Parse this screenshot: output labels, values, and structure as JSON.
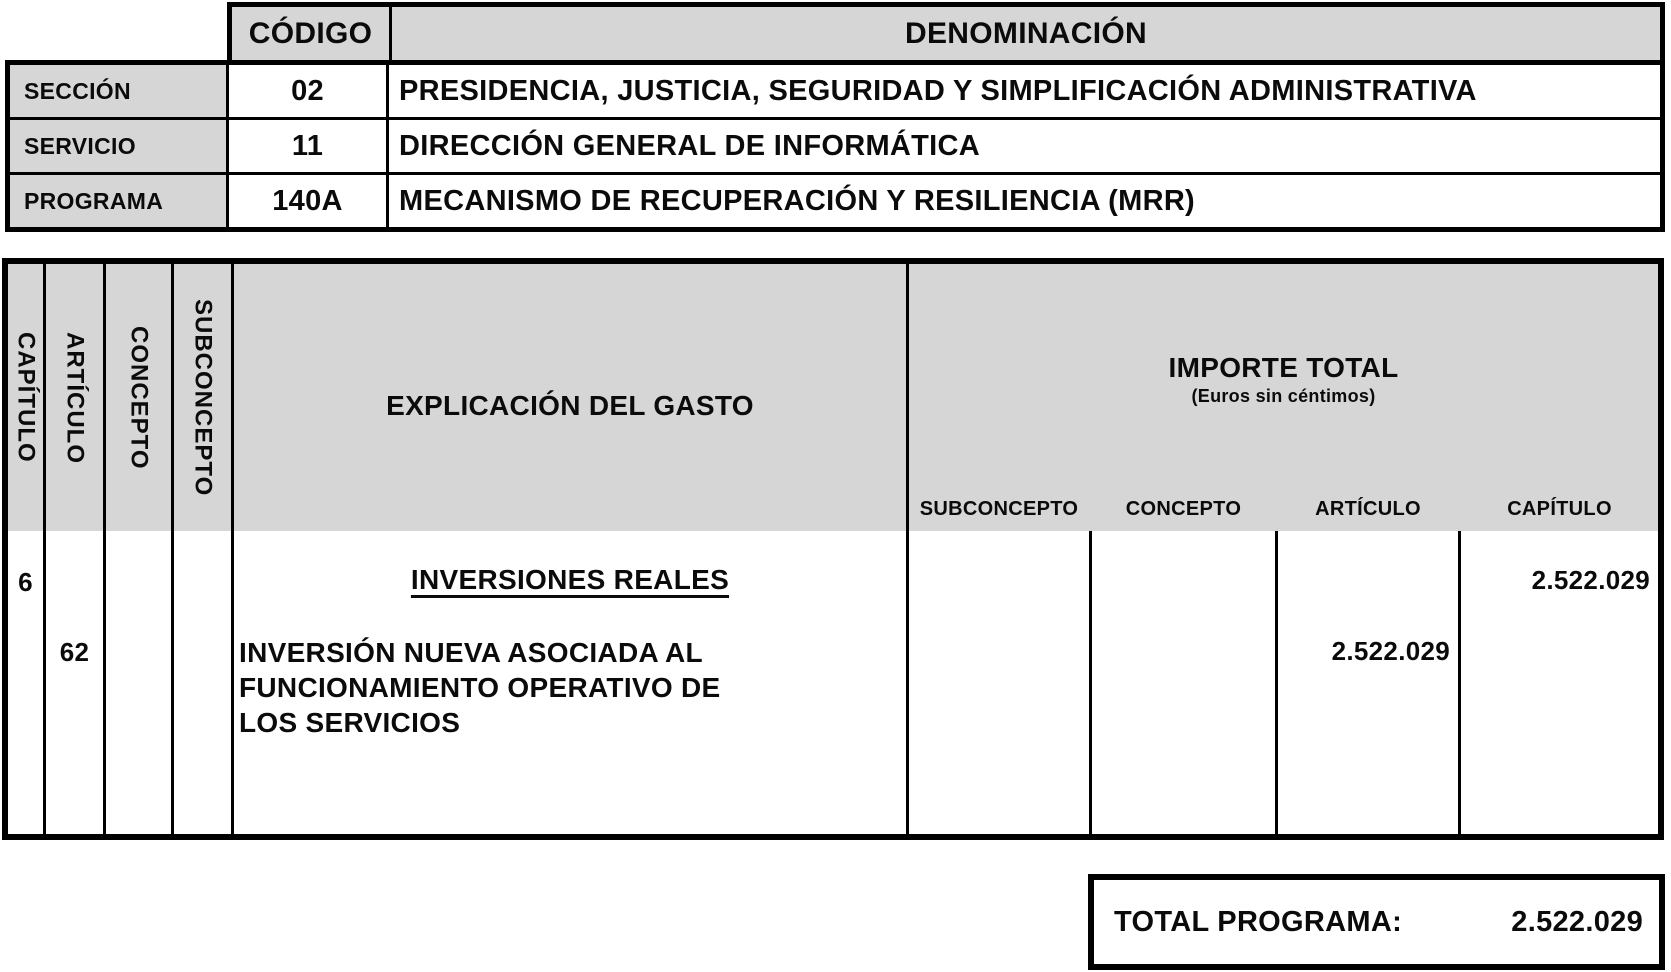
{
  "header_table": {
    "code_header": "CÓDIGO",
    "denomination_header": "DENOMINACIÓN",
    "rows": [
      {
        "label": "SECCIÓN",
        "code": "02",
        "denomination": "PRESIDENCIA, JUSTICIA, SEGURIDAD Y SIMPLIFICACIÓN ADMINISTRATIVA"
      },
      {
        "label": "SERVICIO",
        "code": "11",
        "denomination": "DIRECCIÓN GENERAL DE INFORMÁTICA"
      },
      {
        "label": "PROGRAMA",
        "code": "140A",
        "denomination": "MECANISMO DE RECUPERACIÓN Y RESILIENCIA (MRR)"
      }
    ]
  },
  "budget_table": {
    "row_headers_vertical": [
      "CAPÍTULO",
      "ARTÍCULO",
      "CONCEPTO",
      "SUBCONCEPTO"
    ],
    "explanation_header": "EXPLICACIÓN DEL GASTO",
    "amount_header": {
      "title": "IMPORTE TOTAL",
      "subtitle": "(Euros sin céntimos)"
    },
    "amount_subcolumns": [
      "SUBCONCEPTO",
      "CONCEPTO",
      "ARTÍCULO",
      "CAPÍTULO"
    ],
    "rows": [
      {
        "capitulo_code": "6",
        "explanation": "INVERSIONES REALES",
        "amount_capitulo": "2.522.029"
      },
      {
        "articulo_code": "62",
        "explanation": "INVERSIÓN NUEVA ASOCIADA AL FUNCIONAMIENTO OPERATIVO DE LOS SERVICIOS",
        "amount_articulo": "2.522.029"
      }
    ]
  },
  "total": {
    "label": "TOTAL PROGRAMA:",
    "value": "2.522.029"
  },
  "colors": {
    "header_fill": "#d6d6d6",
    "border": "#000000",
    "text": "#0b0b0b",
    "background": "#ffffff"
  }
}
